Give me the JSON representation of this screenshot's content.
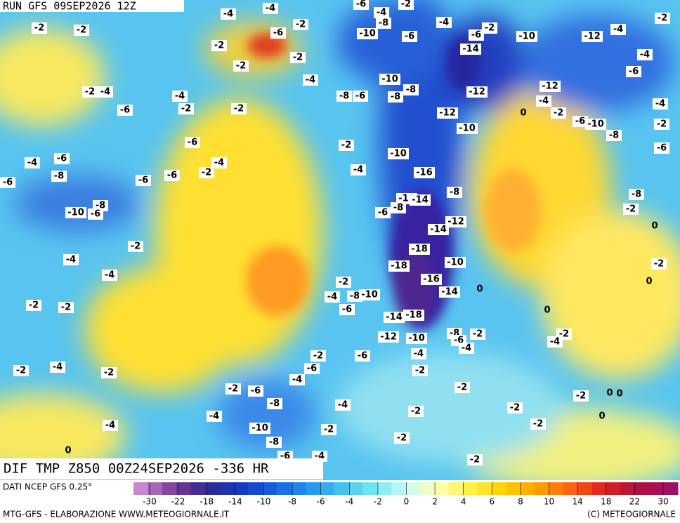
{
  "header": {
    "run": "RUN GFS 09SEP2026 12Z",
    "field": "DIF TMP Z850 00Z24SEP2026 -336 HR",
    "source": "DATI NCEP GFS 0.25°",
    "credit": "MTG-GFS - ELABORAZIONE WWW.METEOGIORNALE.IT",
    "copyright": "(C) METEOGIORNALE"
  },
  "map_labels": [
    -4,
    -4,
    -6,
    -4,
    -2,
    -2,
    -2,
    -6,
    -2,
    -8,
    -10,
    -6,
    -4,
    -2,
    -10,
    -12,
    -4,
    -2,
    -2,
    -2,
    -2,
    -6,
    -14,
    -4,
    -6,
    -4,
    -10,
    -8,
    -8,
    -6,
    -8,
    -12,
    -12,
    -4,
    -2,
    -4,
    -4,
    -6,
    -2,
    -2,
    -12,
    0,
    -2,
    -6,
    -10,
    -4,
    -2,
    -10,
    -8,
    -6,
    -2,
    -6,
    -10,
    -6,
    -4,
    -4,
    -2,
    -4,
    -16,
    -8,
    -6,
    -6,
    -6,
    -8,
    -8,
    -12,
    -14,
    -8,
    -10,
    -6,
    -6,
    -8,
    -2,
    -12,
    -14,
    0,
    -2,
    -18,
    -4,
    -10,
    -18,
    -2,
    -4,
    -16,
    0,
    -2,
    -14,
    0,
    -4,
    -8,
    -10,
    -2,
    -2,
    -6,
    0,
    -14,
    -18,
    -2,
    -8,
    -6,
    -2,
    -12,
    -10,
    -4,
    -4,
    -6,
    -2,
    -4,
    -4,
    -2,
    -2,
    -6,
    -2,
    -4,
    -2,
    -2,
    -6,
    -2,
    0,
    0,
    -8,
    -4,
    -2,
    -2,
    -4,
    0,
    -4,
    -10,
    -2,
    -2,
    -8,
    -2,
    0,
    -6,
    -4,
    -2
  ],
  "colorbar": {
    "ticks": [
      -30,
      -22,
      -18,
      -14,
      -10,
      -8,
      -6,
      -4,
      -2,
      0,
      2,
      4,
      6,
      8,
      10,
      14,
      18,
      22,
      30
    ]
  }
}
